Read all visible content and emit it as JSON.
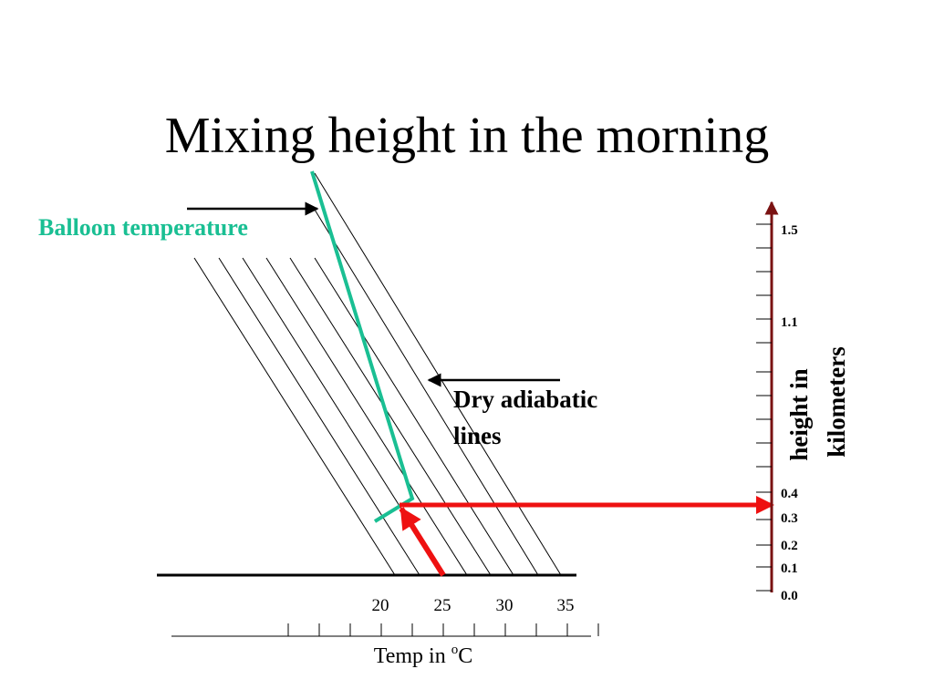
{
  "title": "Mixing height in the morning",
  "labels": {
    "balloon": "Balloon temperature",
    "dry_line1": "Dry adiabatic",
    "dry_line2": "lines",
    "height_axis_line1": "height in",
    "height_axis_line2": "kilometers",
    "temp_axis_prefix": "Temp in ",
    "temp_axis_sup": "o",
    "temp_axis_suffix": "C"
  },
  "height_ticks": [
    "1.5",
    "1.1",
    "0.4",
    "0.3",
    "0.2",
    "0.1",
    "0.0"
  ],
  "temp_ticks": [
    "20",
    "25",
    "30",
    "35"
  ],
  "colors": {
    "balloon": "#1ABF93",
    "arrow": "#EE1111",
    "height_axis": "#7A1212",
    "ink": "#000000"
  }
}
